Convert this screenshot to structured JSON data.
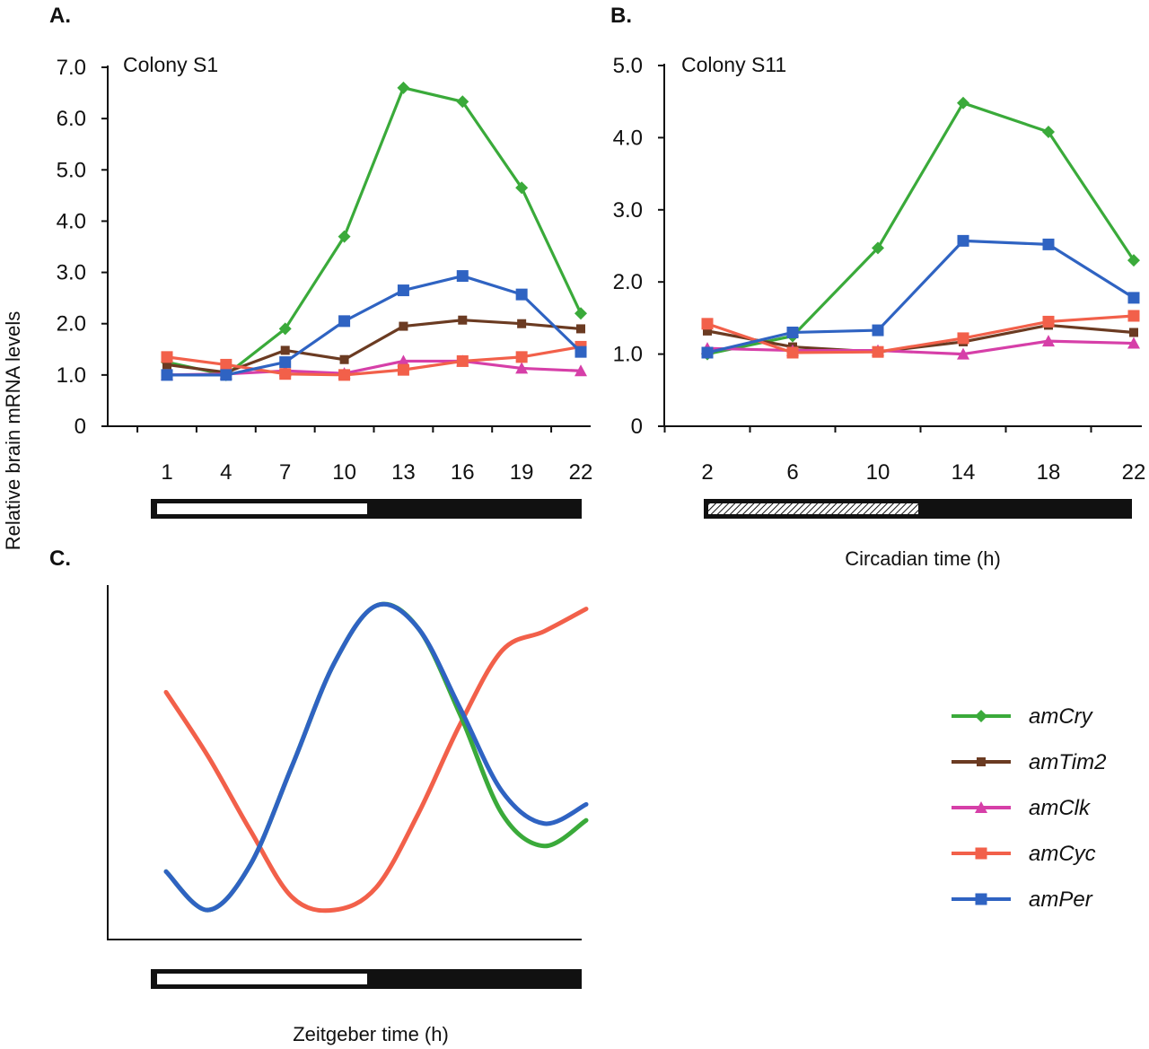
{
  "chart_data": [
    {
      "id": "A",
      "type": "line",
      "panel_label": "A.",
      "colony_label": "Colony S1",
      "xlabel": "",
      "ylabel": "Relative brain mRNA levels",
      "categories": [
        "1",
        "4",
        "7",
        "10",
        "13",
        "16",
        "19",
        "22"
      ],
      "y_tick_labels": [
        "0",
        "1.0",
        "2.0",
        "3.0",
        "4.0",
        "5.0",
        "6.0",
        "7.0"
      ],
      "ylim": [
        0,
        7
      ],
      "light_bar": "light phase from 1 to 11, dark phase from 11 to 22",
      "series": [
        {
          "name": "amCry",
          "values": [
            1.25,
            1.0,
            1.9,
            3.7,
            6.6,
            6.33,
            4.65,
            2.2
          ]
        },
        {
          "name": "amTim2",
          "values": [
            1.2,
            1.05,
            1.48,
            1.3,
            1.95,
            2.07,
            2.0,
            1.9
          ]
        },
        {
          "name": "amClk",
          "values": [
            1.0,
            1.02,
            1.08,
            1.03,
            1.27,
            1.27,
            1.13,
            1.08
          ]
        },
        {
          "name": "amCyc",
          "values": [
            1.35,
            1.2,
            1.02,
            1.0,
            1.1,
            1.27,
            1.35,
            1.55
          ]
        },
        {
          "name": "amPer",
          "values": [
            1.0,
            1.0,
            1.25,
            2.05,
            2.65,
            2.93,
            2.57,
            1.45
          ]
        }
      ]
    },
    {
      "id": "B",
      "type": "line",
      "panel_label": "B.",
      "colony_label": "Colony S11",
      "xlabel": "Circadian time (h)",
      "ylabel": "",
      "categories": [
        "2",
        "6",
        "10",
        "14",
        "18",
        "22"
      ],
      "y_tick_labels": [
        "0",
        "1.0",
        "2.0",
        "3.0",
        "4.0",
        "5.0"
      ],
      "ylim": [
        0,
        5
      ],
      "light_bar": "subjective day (hatched) from 2 to 12, dark from 12 to 22",
      "series": [
        {
          "name": "amCry",
          "values": [
            1.0,
            1.25,
            2.47,
            4.48,
            4.08,
            2.3
          ]
        },
        {
          "name": "amTim2",
          "values": [
            1.32,
            1.1,
            1.03,
            1.17,
            1.4,
            1.3
          ]
        },
        {
          "name": "amClk",
          "values": [
            1.08,
            1.05,
            1.05,
            1.0,
            1.18,
            1.15
          ]
        },
        {
          "name": "amCyc",
          "values": [
            1.42,
            1.02,
            1.03,
            1.22,
            1.45,
            1.53
          ]
        },
        {
          "name": "amPer",
          "values": [
            1.02,
            1.3,
            1.33,
            2.57,
            2.52,
            1.78
          ]
        }
      ]
    },
    {
      "id": "C",
      "type": "line",
      "panel_label": "C.",
      "xlabel": "Zeitgeber time (h)",
      "ylabel": "",
      "schematic": true,
      "x": [
        0,
        0.1,
        0.2,
        0.3,
        0.4,
        0.5,
        0.6,
        0.7,
        0.8,
        0.9,
        1.0
      ],
      "series": [
        {
          "name": "amCry",
          "values": [
            0.17,
            0.05,
            0.19,
            0.5,
            0.82,
            1.0,
            0.93,
            0.66,
            0.35,
            0.25,
            0.33
          ]
        },
        {
          "name": "amPer",
          "values": [
            0.17,
            0.05,
            0.19,
            0.5,
            0.82,
            1.0,
            0.93,
            0.68,
            0.42,
            0.32,
            0.38
          ]
        },
        {
          "name": "amCyc",
          "values": [
            0.73,
            0.53,
            0.3,
            0.09,
            0.05,
            0.12,
            0.35,
            0.63,
            0.86,
            0.92,
            0.99
          ]
        }
      ]
    }
  ],
  "legend": {
    "entries": [
      {
        "name": "amCry",
        "color": "#3aaa3a",
        "marker": "diamond"
      },
      {
        "name": "amTim2",
        "color": "#6b3b22",
        "marker": "square-small"
      },
      {
        "name": "amClk",
        "color": "#d63fa8",
        "marker": "triangle"
      },
      {
        "name": "amCyc",
        "color": "#f2604a",
        "marker": "square"
      },
      {
        "name": "amPer",
        "color": "#2f63c2",
        "marker": "square"
      }
    ]
  },
  "colors": {
    "amCry": "#3aaa3a",
    "amTim2": "#6b3b22",
    "amClk": "#d63fa8",
    "amCyc": "#f2604a",
    "amPer": "#2f63c2",
    "axis": "#111111"
  }
}
